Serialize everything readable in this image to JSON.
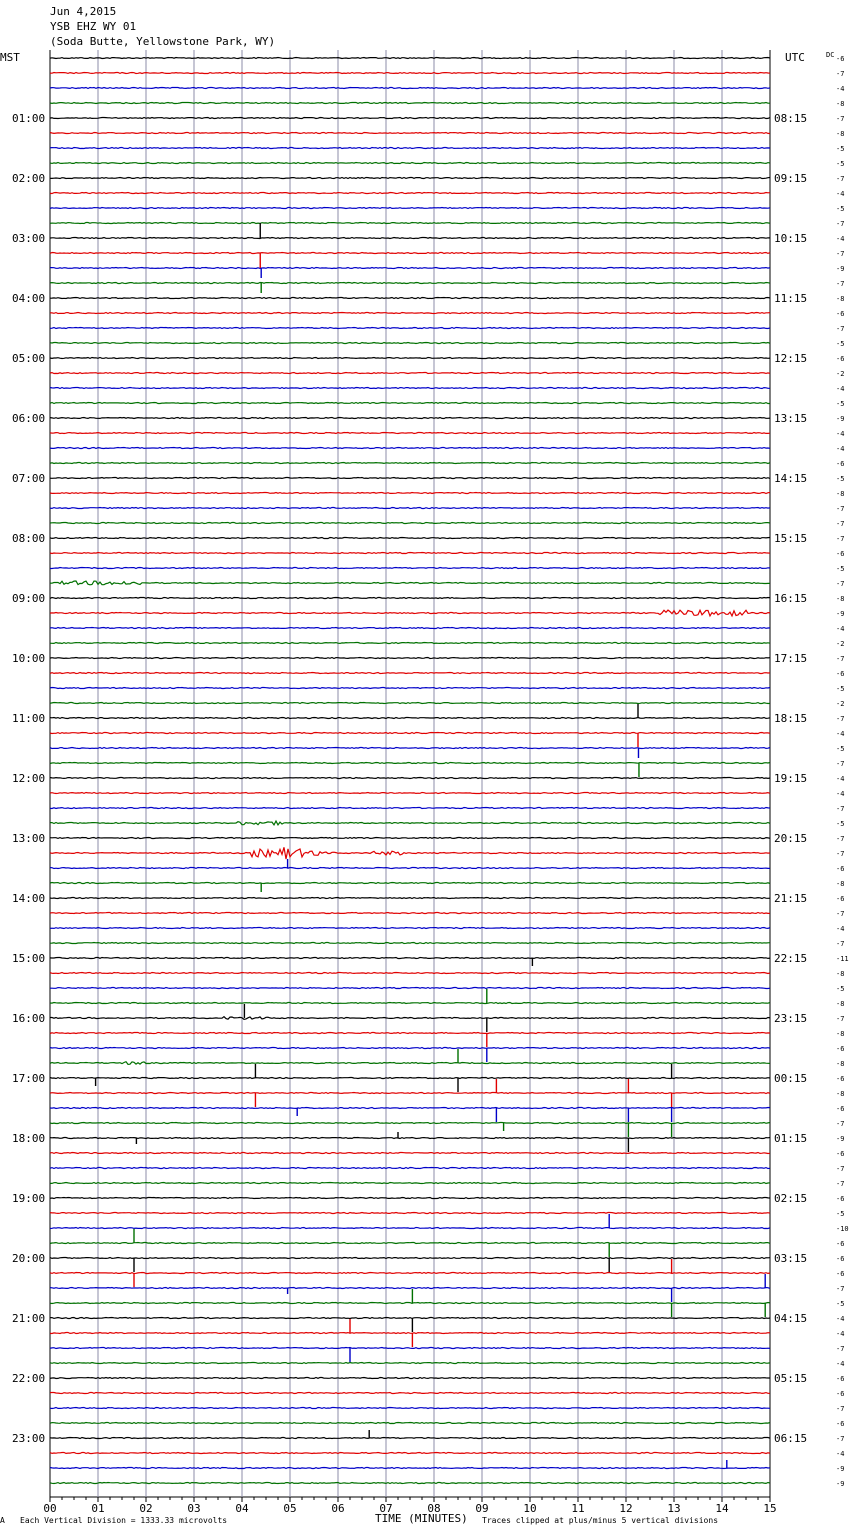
{
  "header": {
    "date": "Jun 4,2015",
    "station": "YSB EHZ WY 01",
    "location": "(Soda Butte, Yellowstone Park, WY)",
    "left_tz": "MST",
    "right_tz": "UTC",
    "dc_label": "DC"
  },
  "footer": {
    "mark": "A",
    "scale": "Each Vertical Division = 1333.33 microvolts",
    "clip": "Traces clipped at plus/minus 5 vertical divisions"
  },
  "chart_data": {
    "type": "line",
    "title": "",
    "xlabel": "TIME (MINUTES)",
    "ylabel": "",
    "xlim": [
      0,
      15
    ],
    "x_ticks": [
      "00",
      "01",
      "02",
      "03",
      "04",
      "05",
      "06",
      "07",
      "08",
      "09",
      "10",
      "11",
      "12",
      "13",
      "14",
      "15"
    ],
    "lines_per_hour": 4,
    "minutes_per_line": 15,
    "line_count": 96,
    "trace_colors": [
      "#000000",
      "#e00000",
      "#0000c8",
      "#007000"
    ],
    "grid_color": "#8c8ca8",
    "left_hours": [
      "01:00",
      "02:00",
      "03:00",
      "04:00",
      "05:00",
      "06:00",
      "07:00",
      "08:00",
      "09:00",
      "10:00",
      "11:00",
      "12:00",
      "13:00",
      "14:00",
      "15:00",
      "16:00",
      "17:00",
      "18:00",
      "19:00",
      "20:00",
      "21:00",
      "22:00",
      "23:00"
    ],
    "right_hours": [
      "08:15",
      "09:15",
      "10:15",
      "11:15",
      "12:15",
      "13:15",
      "14:15",
      "15:15",
      "16:15",
      "17:15",
      "18:15",
      "19:15",
      "20:15",
      "21:15",
      "22:15",
      "23:15",
      "00:15",
      "01:15",
      "02:15",
      "03:15",
      "04:15",
      "05:15",
      "06:15"
    ],
    "dc_offsets": [
      -6,
      -7,
      -4,
      -8,
      -7,
      -8,
      -5,
      -5,
      -7,
      -4,
      -5,
      -7,
      -4,
      -7,
      -9,
      -7,
      -8,
      -6,
      -7,
      -5,
      -6,
      -2,
      -4,
      -5,
      -9,
      -4,
      -4,
      -6,
      -5,
      -8,
      -7,
      -7,
      -7,
      -6,
      -5,
      -7,
      -8,
      -9,
      -4,
      -2,
      -7,
      -6,
      -5,
      -2,
      -7,
      -4,
      -5,
      -7,
      -4,
      -4,
      -7,
      -5,
      -7,
      -7,
      -6,
      -8,
      -6,
      -7,
      -4,
      -7,
      -11,
      -8,
      -5,
      -8,
      -7,
      -8,
      -6,
      -8,
      -6,
      -8,
      -6,
      -7,
      -9,
      -6,
      -7,
      -7,
      -6,
      -5,
      -10,
      -6,
      -6,
      -6,
      -7,
      -5,
      -4,
      -4,
      -7,
      -4,
      -6,
      -6,
      -7,
      -6,
      -7,
      -4,
      -9,
      -9
    ],
    "events": [
      {
        "line": 12,
        "t": 4.38,
        "amp": 15,
        "dir": 1
      },
      {
        "line": 13,
        "t": 4.38,
        "amp": 15,
        "dir": -1
      },
      {
        "line": 14,
        "t": 4.4,
        "amp": 10,
        "dir": -1
      },
      {
        "line": 15,
        "t": 4.4,
        "amp": 10,
        "dir": -1
      },
      {
        "line": 44,
        "t": 12.25,
        "amp": 14,
        "dir": 1
      },
      {
        "line": 45,
        "t": 12.25,
        "amp": 14,
        "dir": -1
      },
      {
        "line": 46,
        "t": 12.26,
        "amp": 10,
        "dir": -1
      },
      {
        "line": 47,
        "t": 12.27,
        "amp": 14,
        "dir": -1
      },
      {
        "line": 54,
        "t": 4.95,
        "amp": 9,
        "dir": 1
      },
      {
        "line": 55,
        "t": 4.4,
        "amp": 9,
        "dir": -1
      },
      {
        "line": 60,
        "t": 10.05,
        "amp": 8,
        "dir": -1
      },
      {
        "line": 64,
        "t": 4.05,
        "amp": 14,
        "dir": 1
      },
      {
        "line": 63,
        "t": 9.1,
        "amp": 14,
        "dir": 1
      },
      {
        "line": 64,
        "t": 9.1,
        "amp": 14,
        "dir": -1
      },
      {
        "line": 65,
        "t": 9.1,
        "amp": 14,
        "dir": -1
      },
      {
        "line": 66,
        "t": 9.1,
        "amp": 14,
        "dir": -1
      },
      {
        "line": 67,
        "t": 8.5,
        "amp": 14,
        "dir": 1
      },
      {
        "line": 68,
        "t": 8.5,
        "amp": 14,
        "dir": -1
      },
      {
        "line": 68,
        "t": 0.95,
        "amp": 8,
        "dir": -1
      },
      {
        "line": 68,
        "t": 4.28,
        "amp": 14,
        "dir": 1
      },
      {
        "line": 69,
        "t": 4.28,
        "amp": 14,
        "dir": -1
      },
      {
        "line": 69,
        "t": 9.3,
        "amp": 14,
        "dir": 1
      },
      {
        "line": 70,
        "t": 9.3,
        "amp": 14,
        "dir": -1
      },
      {
        "line": 70,
        "t": 5.15,
        "amp": 8,
        "dir": -1
      },
      {
        "line": 69,
        "t": 12.05,
        "amp": 14,
        "dir": 1
      },
      {
        "line": 70,
        "t": 12.05,
        "amp": 14,
        "dir": -1
      },
      {
        "line": 71,
        "t": 12.05,
        "amp": 14,
        "dir": -1
      },
      {
        "line": 72,
        "t": 12.05,
        "amp": 14,
        "dir": -1
      },
      {
        "line": 68,
        "t": 12.95,
        "amp": 14,
        "dir": 1
      },
      {
        "line": 69,
        "t": 12.95,
        "amp": 14,
        "dir": -1
      },
      {
        "line": 70,
        "t": 12.95,
        "amp": 14,
        "dir": -1
      },
      {
        "line": 71,
        "t": 12.95,
        "amp": 14,
        "dir": -1
      },
      {
        "line": 71,
        "t": 9.45,
        "amp": 8,
        "dir": -1
      },
      {
        "line": 72,
        "t": 1.8,
        "amp": 6,
        "dir": -1
      },
      {
        "line": 72,
        "t": 7.25,
        "amp": 6,
        "dir": 1
      },
      {
        "line": 79,
        "t": 1.75,
        "amp": 14,
        "dir": 1
      },
      {
        "line": 80,
        "t": 1.75,
        "amp": 14,
        "dir": -1
      },
      {
        "line": 81,
        "t": 1.75,
        "amp": 14,
        "dir": -1
      },
      {
        "line": 82,
        "t": 4.95,
        "amp": 6,
        "dir": -1
      },
      {
        "line": 78,
        "t": 11.65,
        "amp": 14,
        "dir": 1
      },
      {
        "line": 79,
        "t": 11.65,
        "amp": 14,
        "dir": -1
      },
      {
        "line": 80,
        "t": 11.65,
        "amp": 14,
        "dir": -1
      },
      {
        "line": 81,
        "t": 12.95,
        "amp": 14,
        "dir": 1
      },
      {
        "line": 82,
        "t": 12.95,
        "amp": 14,
        "dir": -1
      },
      {
        "line": 83,
        "t": 12.95,
        "amp": 14,
        "dir": -1
      },
      {
        "line": 82,
        "t": 14.9,
        "amp": 14,
        "dir": 1
      },
      {
        "line": 83,
        "t": 14.9,
        "amp": 14,
        "dir": -1
      },
      {
        "line": 83,
        "t": 7.55,
        "amp": 14,
        "dir": 1
      },
      {
        "line": 84,
        "t": 7.55,
        "amp": 14,
        "dir": -1
      },
      {
        "line": 85,
        "t": 7.55,
        "amp": 14,
        "dir": -1
      },
      {
        "line": 85,
        "t": 6.25,
        "amp": 14,
        "dir": 1
      },
      {
        "line": 86,
        "t": 6.25,
        "amp": 14,
        "dir": -1
      },
      {
        "line": 92,
        "t": 6.65,
        "amp": 8,
        "dir": 1
      },
      {
        "line": 94,
        "t": 14.1,
        "amp": 8,
        "dir": 1
      }
    ],
    "noise_bursts": [
      {
        "line": 35,
        "t0": 0.2,
        "t1": 1.9,
        "amp": 2
      },
      {
        "line": 37,
        "t0": 12.7,
        "t1": 14.5,
        "amp": 3
      },
      {
        "line": 51,
        "t0": 3.9,
        "t1": 5.0,
        "amp": 2
      },
      {
        "line": 53,
        "t0": 4.2,
        "t1": 5.6,
        "amp": 4
      },
      {
        "line": 53,
        "t0": 6.7,
        "t1": 7.4,
        "amp": 2
      },
      {
        "line": 64,
        "t0": 3.6,
        "t1": 4.7,
        "amp": 1.5
      },
      {
        "line": 67,
        "t0": 1.5,
        "t1": 2.0,
        "amp": 1.5
      }
    ],
    "quake": {
      "line": 53,
      "t": 4.85,
      "amp": 8
    }
  }
}
